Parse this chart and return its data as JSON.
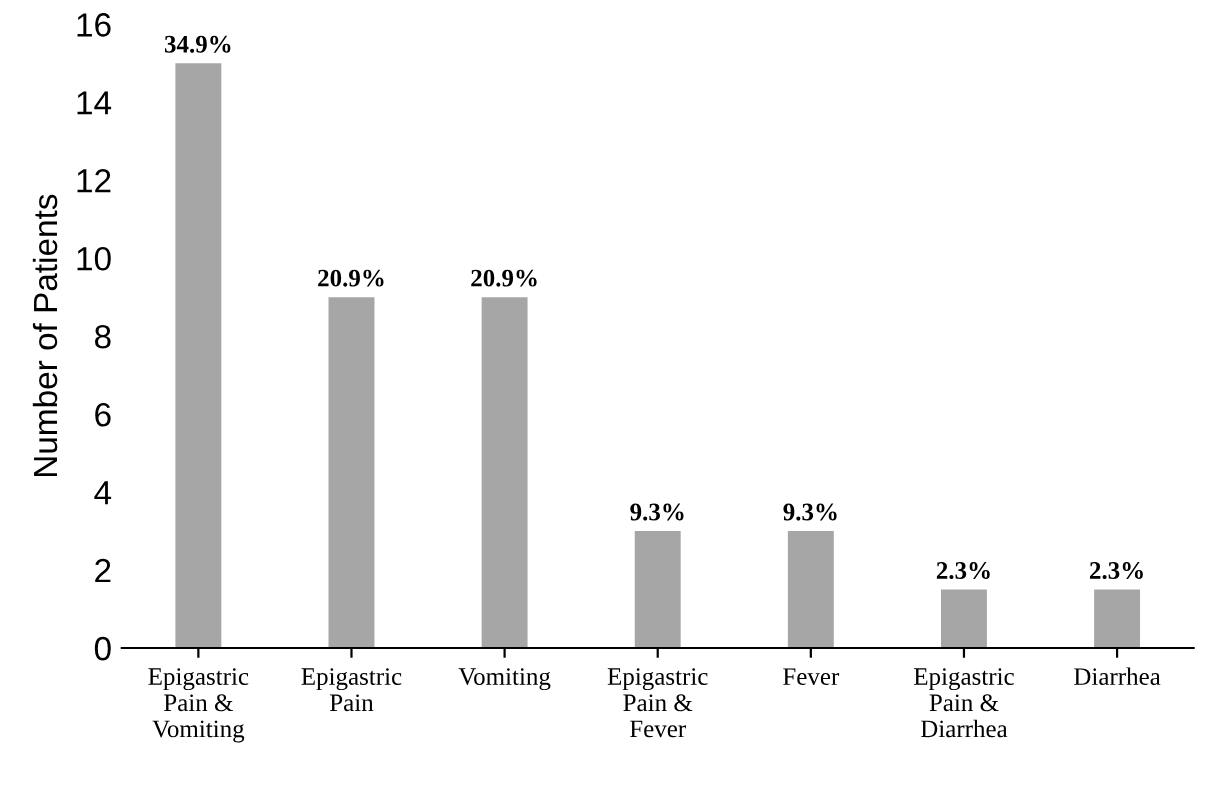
{
  "chart_data": {
    "type": "bar",
    "ylabel": "Number of Patients",
    "categories": [
      "Epigastric\nPain &\nVomiting",
      "Epigastric\nPain",
      "Vomiting",
      "Epigastric\nPain &\nFever",
      "Fever",
      "Epigastric\nPain &\nDiarrhea",
      "Diarrhea"
    ],
    "values": [
      15,
      9,
      9,
      3,
      3,
      1.5,
      1.5
    ],
    "annotations": [
      {
        "text": "34.9%",
        "x": "Epigastric\nPain &\nVomiting",
        "y": 15
      },
      {
        "text": "20.9%",
        "x": "Epigastric\nPain",
        "y": 9
      },
      {
        "text": "20.9%",
        "x": "Vomiting",
        "y": 9
      },
      {
        "text": "9.3%",
        "x": "Epigastric\nPain &\nFever",
        "y": 3
      },
      {
        "text": "9.3%",
        "x": "Fever",
        "y": 3
      },
      {
        "text": "2.3%",
        "x": "Epigastric\nPain &\nDiarrhea",
        "y": 1.5
      },
      {
        "text": "2.3%",
        "x": "Diarrhea",
        "y": 1.5
      }
    ],
    "color": "#a6a6a6",
    "ylim": [
      0,
      16
    ],
    "yticks": [
      0,
      2,
      4,
      6,
      8,
      10,
      12,
      14,
      16
    ],
    "grid": false,
    "legend": false
  }
}
